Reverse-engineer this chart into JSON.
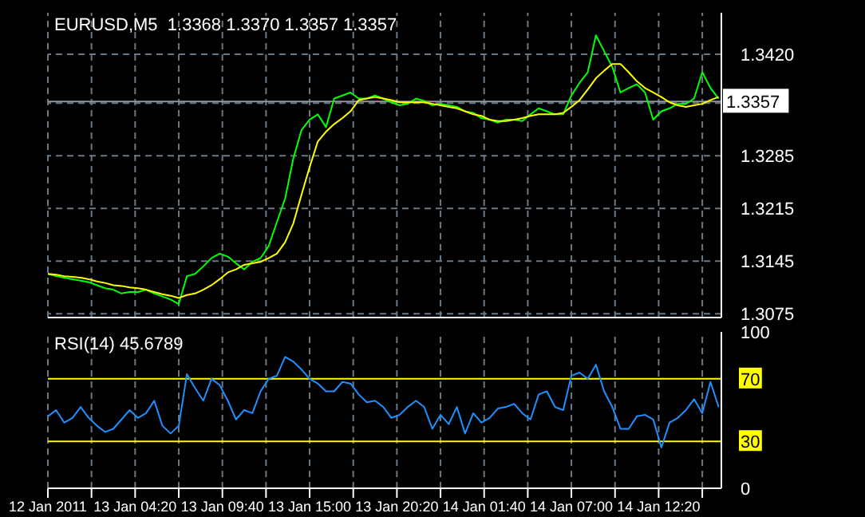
{
  "chart_data": [
    {
      "type": "line",
      "title": "EURUSD,M5  1.3368 1.3370 1.3357 1.3357",
      "x": [
        "2011-01-12T23:00",
        "2011-01-12T23:30",
        "2011-01-13T00:00",
        "2011-01-13T00:30",
        "2011-01-13T01:00",
        "2011-01-13T01:30",
        "2011-01-13T02:00",
        "2011-01-13T02:30",
        "2011-01-13T03:00",
        "2011-01-13T03:30",
        "2011-01-13T04:00",
        "2011-01-13T04:30",
        "2011-01-13T05:00",
        "2011-01-13T05:30",
        "2011-01-13T06:00",
        "2011-01-13T06:30",
        "2011-01-13T07:00",
        "2011-01-13T07:30",
        "2011-01-13T08:00",
        "2011-01-13T08:30",
        "2011-01-13T09:00",
        "2011-01-13T09:30",
        "2011-01-13T10:00",
        "2011-01-13T10:30",
        "2011-01-13T11:00",
        "2011-01-13T11:30",
        "2011-01-13T12:00",
        "2011-01-13T12:30",
        "2011-01-13T13:00",
        "2011-01-13T13:30",
        "2011-01-13T14:00",
        "2011-01-13T14:30",
        "2011-01-13T15:00",
        "2011-01-13T15:30",
        "2011-01-13T16:00",
        "2011-01-13T16:30",
        "2011-01-13T17:00",
        "2011-01-13T17:30",
        "2011-01-13T18:00",
        "2011-01-13T18:30",
        "2011-01-13T19:00",
        "2011-01-13T19:30",
        "2011-01-13T20:00",
        "2011-01-13T20:30",
        "2011-01-13T21:00",
        "2011-01-13T21:30",
        "2011-01-13T22:00",
        "2011-01-13T22:30",
        "2011-01-13T23:00",
        "2011-01-13T23:30",
        "2011-01-14T00:00",
        "2011-01-14T00:30",
        "2011-01-14T01:00",
        "2011-01-14T01:30",
        "2011-01-14T02:00",
        "2011-01-14T02:30",
        "2011-01-14T03:00",
        "2011-01-14T03:30",
        "2011-01-14T04:00",
        "2011-01-14T04:30",
        "2011-01-14T05:00",
        "2011-01-14T05:30",
        "2011-01-14T06:00",
        "2011-01-14T06:30",
        "2011-01-14T07:00",
        "2011-01-14T07:30",
        "2011-01-14T08:00",
        "2011-01-14T08:30",
        "2011-01-14T09:00",
        "2011-01-14T09:30",
        "2011-01-14T10:00",
        "2011-01-14T10:30",
        "2011-01-14T11:00",
        "2011-01-14T11:30",
        "2011-01-14T12:00",
        "2011-01-14T12:30",
        "2011-01-14T13:00",
        "2011-01-14T13:30",
        "2011-01-14T14:00",
        "2011-01-14T14:30",
        "2011-01-14T15:00",
        "2011-01-14T15:30",
        "2011-01-14T16:00"
      ],
      "series": [
        {
          "type": "line",
          "color": "#00ff00",
          "values": [
            1.3128,
            1.3125,
            1.3123,
            1.3121,
            1.3119,
            1.3117,
            1.3113,
            1.3109,
            1.3107,
            1.3102,
            1.3104,
            1.3104,
            1.3107,
            1.3102,
            1.3098,
            1.3094,
            1.3088,
            1.3125,
            1.3128,
            1.3138,
            1.3149,
            1.3155,
            1.3151,
            1.3142,
            1.3134,
            1.3144,
            1.3149,
            1.3165,
            1.3197,
            1.3228,
            1.3281,
            1.3319,
            1.3333,
            1.334,
            1.3323,
            1.3361,
            1.3365,
            1.3369,
            1.3361,
            1.3361,
            1.3365,
            1.3361,
            1.3356,
            1.3352,
            1.3354,
            1.3361,
            1.3358,
            1.3352,
            1.3354,
            1.3352,
            1.335,
            1.3344,
            1.3342,
            1.3335,
            1.3333,
            1.3329,
            1.3333,
            1.3333,
            1.3331,
            1.334,
            1.3348,
            1.3344,
            1.334,
            1.334,
            1.3365,
            1.3382,
            1.3396,
            1.3445,
            1.3424,
            1.3403,
            1.3369,
            1.3375,
            1.338,
            1.3369,
            1.3333,
            1.3344,
            1.3348,
            1.3354,
            1.3354,
            1.3361,
            1.3396,
            1.3375,
            1.3361
          ]
        },
        {
          "type": "line",
          "color": "#ffff00",
          "values": [
            1.3128,
            1.3127,
            1.3125,
            1.3124,
            1.3123,
            1.3121,
            1.3118,
            1.3116,
            1.3113,
            1.3112,
            1.311,
            1.3109,
            1.3107,
            1.3104,
            1.3101,
            1.3099,
            1.3096,
            1.31,
            1.3102,
            1.3107,
            1.3113,
            1.3121,
            1.313,
            1.3134,
            1.314,
            1.3142,
            1.3144,
            1.3149,
            1.3155,
            1.317,
            1.3195,
            1.3233,
            1.327,
            1.3304,
            1.3317,
            1.3327,
            1.3335,
            1.3344,
            1.3359,
            1.3361,
            1.3363,
            1.3361,
            1.3359,
            1.3356,
            1.3356,
            1.3356,
            1.3356,
            1.3354,
            1.3352,
            1.335,
            1.3348,
            1.3344,
            1.334,
            1.3338,
            1.3333,
            1.3331,
            1.3331,
            1.3333,
            1.3335,
            1.3338,
            1.334,
            1.334,
            1.334,
            1.3342,
            1.335,
            1.3359,
            1.3373,
            1.3388,
            1.3398,
            1.3407,
            1.3407,
            1.3396,
            1.3384,
            1.3375,
            1.3369,
            1.3363,
            1.3356,
            1.3352,
            1.335,
            1.3352,
            1.3354,
            1.3359,
            1.3363
          ]
        }
      ],
      "xlim": [
        "2011-01-12T23:00",
        "2011-01-14T16:10"
      ],
      "xticks": [
        {
          "value": "2011-01-12T23:00",
          "label": null
        },
        {
          "value": "2011-01-13T01:40",
          "label": null
        },
        {
          "value": "2011-01-13T04:20",
          "label": null
        },
        {
          "value": "2011-01-13T07:00",
          "label": null
        },
        {
          "value": "2011-01-13T09:40",
          "label": null
        },
        {
          "value": "2011-01-13T12:20",
          "label": null
        },
        {
          "value": "2011-01-13T15:00",
          "label": null
        },
        {
          "value": "2011-01-13T17:40",
          "label": null
        },
        {
          "value": "2011-01-13T20:20",
          "label": null
        },
        {
          "value": "2011-01-13T23:00",
          "label": null
        },
        {
          "value": "2011-01-14T01:40",
          "label": null
        },
        {
          "value": "2011-01-14T04:20",
          "label": null
        },
        {
          "value": "2011-01-14T07:00",
          "label": null
        },
        {
          "value": "2011-01-14T09:40",
          "label": null
        },
        {
          "value": "2011-01-14T12:20",
          "label": null
        },
        {
          "value": "2011-01-14T15:00",
          "label": null
        }
      ],
      "ylim": [
        1.307,
        1.3475
      ],
      "yticks": [
        1.3075,
        1.3145,
        1.3215,
        1.3285,
        {
          "value": 1.3355,
          "label": null
        },
        {
          "value": 1.342,
          "label": "1.3420"
        }
      ],
      "ref_lines": [
        {
          "axis": "y",
          "value": 1.3357,
          "label": "1.3357",
          "color": "#8c96a0"
        }
      ],
      "grid": true,
      "tick_labels": "y",
      "line_style": "solid",
      "marker": "none"
    },
    {
      "type": "line",
      "title": "RSI(14) 45.6789",
      "x": [
        "2011-01-12T23:00",
        "2011-01-12T23:30",
        "2011-01-13T00:00",
        "2011-01-13T00:30",
        "2011-01-13T01:00",
        "2011-01-13T01:30",
        "2011-01-13T02:00",
        "2011-01-13T02:30",
        "2011-01-13T03:00",
        "2011-01-13T03:30",
        "2011-01-13T04:00",
        "2011-01-13T04:30",
        "2011-01-13T05:00",
        "2011-01-13T05:30",
        "2011-01-13T06:00",
        "2011-01-13T06:30",
        "2011-01-13T07:00",
        "2011-01-13T07:30",
        "2011-01-13T08:00",
        "2011-01-13T08:30",
        "2011-01-13T09:00",
        "2011-01-13T09:30",
        "2011-01-13T10:00",
        "2011-01-13T10:30",
        "2011-01-13T11:00",
        "2011-01-13T11:30",
        "2011-01-13T12:00",
        "2011-01-13T12:30",
        "2011-01-13T13:00",
        "2011-01-13T13:30",
        "2011-01-13T14:00",
        "2011-01-13T14:30",
        "2011-01-13T15:00",
        "2011-01-13T15:30",
        "2011-01-13T16:00",
        "2011-01-13T16:30",
        "2011-01-13T17:00",
        "2011-01-13T17:30",
        "2011-01-13T18:00",
        "2011-01-13T18:30",
        "2011-01-13T19:00",
        "2011-01-13T19:30",
        "2011-01-13T20:00",
        "2011-01-13T20:30",
        "2011-01-13T21:00",
        "2011-01-13T21:30",
        "2011-01-13T22:00",
        "2011-01-13T22:30",
        "2011-01-13T23:00",
        "2011-01-13T23:30",
        "2011-01-14T00:00",
        "2011-01-14T00:30",
        "2011-01-14T01:00",
        "2011-01-14T01:30",
        "2011-01-14T02:00",
        "2011-01-14T02:30",
        "2011-01-14T03:00",
        "2011-01-14T03:30",
        "2011-01-14T04:00",
        "2011-01-14T04:30",
        "2011-01-14T05:00",
        "2011-01-14T05:30",
        "2011-01-14T06:00",
        "2011-01-14T06:30",
        "2011-01-14T07:00",
        "2011-01-14T07:30",
        "2011-01-14T08:00",
        "2011-01-14T08:30",
        "2011-01-14T09:00",
        "2011-01-14T09:30",
        "2011-01-14T10:00",
        "2011-01-14T10:30",
        "2011-01-14T11:00",
        "2011-01-14T11:30",
        "2011-01-14T12:00",
        "2011-01-14T12:30",
        "2011-01-14T13:00",
        "2011-01-14T13:30",
        "2011-01-14T14:00",
        "2011-01-14T14:30",
        "2011-01-14T15:00",
        "2011-01-14T15:30",
        "2011-01-14T16:00"
      ],
      "series": [
        {
          "type": "line",
          "color": "#1e90ff",
          "values": [
            46,
            50,
            42,
            45,
            52,
            45,
            40,
            36,
            38,
            44,
            50,
            45,
            48,
            56,
            40,
            35,
            40,
            73,
            64,
            56,
            70,
            66,
            56,
            44,
            50,
            48,
            62,
            70,
            72,
            84,
            81,
            76,
            70,
            67,
            62,
            62,
            68,
            67,
            60,
            55,
            56,
            52,
            45,
            47,
            52,
            56,
            52,
            38,
            47,
            41,
            52,
            35,
            48,
            42,
            45,
            51,
            52,
            54,
            48,
            44,
            60,
            62,
            52,
            50,
            72,
            74,
            70,
            79,
            62,
            52,
            38,
            38,
            46,
            47,
            44,
            26,
            42,
            45,
            50,
            57,
            48,
            68,
            52
          ]
        }
      ],
      "xlim": [
        "2011-01-12T23:00",
        "2011-01-14T16:10"
      ],
      "xticks": [
        {
          "value": "2011-01-12T23:00",
          "label": "12 Jan 2011"
        },
        {
          "value": "2011-01-13T01:40",
          "label": null
        },
        {
          "value": "2011-01-13T04:20",
          "label": "13 Jan 04:20"
        },
        {
          "value": "2011-01-13T07:00",
          "label": null
        },
        {
          "value": "2011-01-13T09:40",
          "label": "13 Jan 09:40"
        },
        {
          "value": "2011-01-13T12:20",
          "label": null
        },
        {
          "value": "2011-01-13T15:00",
          "label": "13 Jan 15:00"
        },
        {
          "value": "2011-01-13T17:40",
          "label": null
        },
        {
          "value": "2011-01-13T20:20",
          "label": "13 Jan 20:20"
        },
        {
          "value": "2011-01-13T23:00",
          "label": null
        },
        {
          "value": "2011-01-14T01:40",
          "label": "14 Jan 01:40"
        },
        {
          "value": "2011-01-14T04:20",
          "label": null
        },
        {
          "value": "2011-01-14T07:00",
          "label": "14 Jan 07:00"
        },
        {
          "value": "2011-01-14T09:40",
          "label": null
        },
        {
          "value": "2011-01-14T12:20",
          "label": "14 Jan 12:20"
        },
        {
          "value": "2011-01-14T15:00",
          "label": null
        }
      ],
      "ylim": [
        0,
        100
      ],
      "yticks": [
        0,
        30,
        70,
        100
      ],
      "ref_lines": [
        {
          "axis": "y",
          "value": 30,
          "color": "#ffff00"
        },
        {
          "axis": "y",
          "value": 70,
          "color": "#ffff00"
        }
      ],
      "grid": "x",
      "line_style": "solid",
      "marker": "none"
    }
  ]
}
